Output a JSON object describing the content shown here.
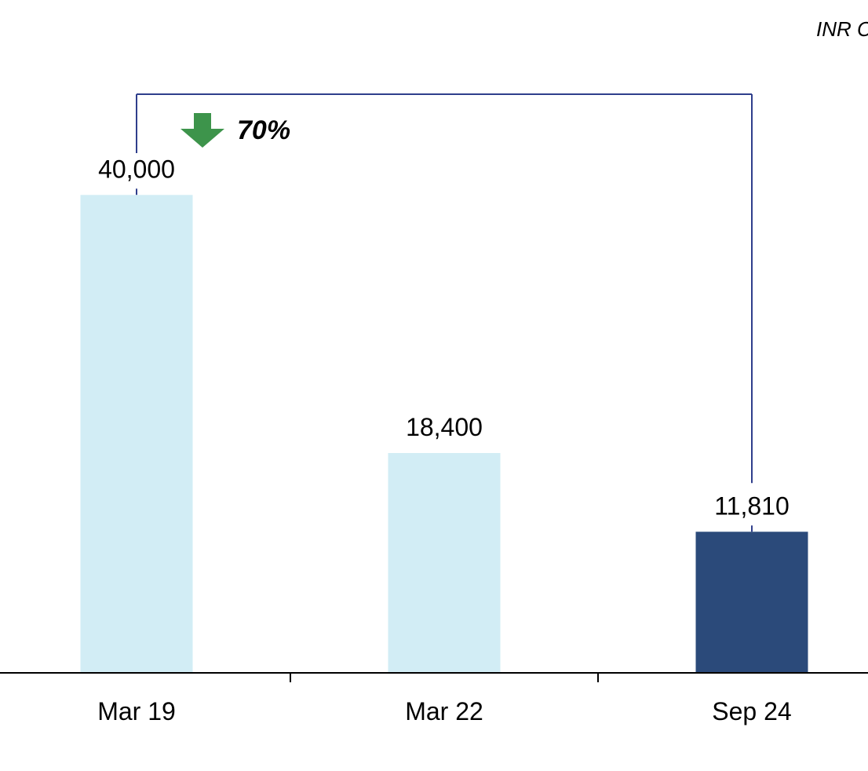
{
  "chart_data": {
    "type": "bar",
    "unit_label": "INR C",
    "categories": [
      "Mar 19",
      "Mar 22",
      "Sep 24"
    ],
    "values": [
      40000,
      18400,
      11810
    ],
    "value_labels": [
      "40,000",
      "18,400",
      "11,810"
    ],
    "ylim": [
      0,
      46000
    ],
    "grid": false,
    "legend": "none",
    "annotation": {
      "from_category": "Mar 19",
      "to_category": "Sep 24",
      "change_label": "70%",
      "direction": "down"
    }
  },
  "colors": {
    "bar_light": "#d2edf5",
    "bar_highlight": "#2b4a7a",
    "bracket": "#2f3e8c",
    "arrow": "#3d944b",
    "axis": "#000000"
  },
  "highlight_category": "Sep 24"
}
